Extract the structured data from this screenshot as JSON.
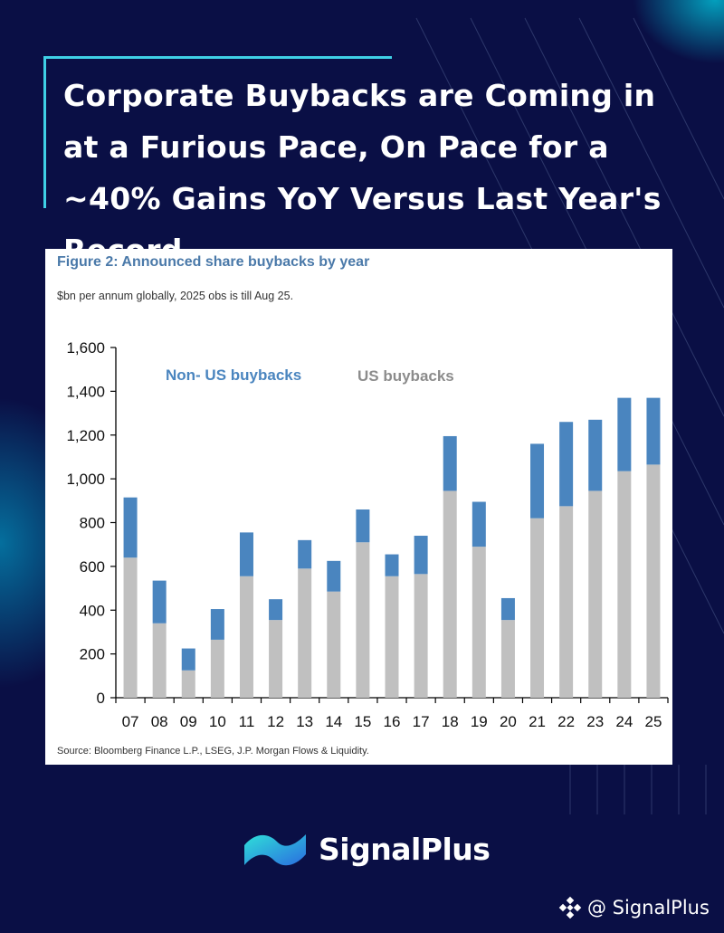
{
  "header": {
    "title": "Corporate Buybacks are Coming in at a Furious Pace, On Pace for a ~40% Gains YoY Versus Last Year's Record"
  },
  "figure": {
    "title": "Figure 2: Announced share buybacks by year",
    "subtitle": "$bn per annum globally, 2025 obs is till Aug 25.",
    "source": "Source: Bloomberg Finance L.P., LSEG, J.P. Morgan Flows & Liquidity."
  },
  "chart_data": {
    "type": "bar",
    "stacked": true,
    "categories": [
      "07",
      "08",
      "09",
      "10",
      "11",
      "12",
      "13",
      "14",
      "15",
      "16",
      "17",
      "18",
      "19",
      "20",
      "21",
      "22",
      "23",
      "24",
      "25"
    ],
    "series": [
      {
        "name": "US buybacks",
        "color": "#c0c0c0",
        "values": [
          640,
          340,
          125,
          265,
          555,
          355,
          590,
          485,
          710,
          555,
          565,
          945,
          690,
          355,
          820,
          875,
          945,
          1035,
          1065
        ]
      },
      {
        "name": "Non- US buybacks",
        "color": "#4a85bf",
        "values": [
          275,
          195,
          100,
          140,
          200,
          95,
          130,
          140,
          150,
          100,
          175,
          250,
          205,
          100,
          340,
          385,
          325,
          335,
          305
        ]
      }
    ],
    "ylim": [
      0,
      1600
    ],
    "yticks": [
      "0",
      "200",
      "400",
      "600",
      "800",
      "1,000",
      "1,200",
      "1,400",
      "1,600"
    ],
    "grid": false,
    "legend": [
      {
        "label": "Non- US buybacks",
        "color": "#4a85bf"
      },
      {
        "label": "US buybacks",
        "color": "#8c8c8c"
      }
    ]
  },
  "brand": {
    "name": "SignalPlus",
    "handle": "@ SignalPlus",
    "logo_icon": "signalplus-wave-logo",
    "handle_icon": "binance-diamond-icon"
  },
  "colors": {
    "background": "#0a0f45",
    "accent": "#3fd0e6",
    "figure_title": "#4a79a9"
  }
}
